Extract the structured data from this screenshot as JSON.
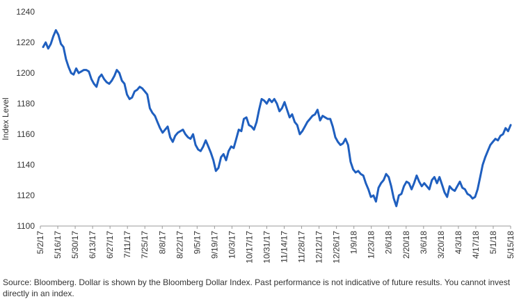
{
  "chart_data": {
    "type": "line",
    "ylabel": "Index Level",
    "ylim": [
      1100,
      1240
    ],
    "yticks": [
      1100,
      1120,
      1140,
      1160,
      1180,
      1200,
      1220,
      1240
    ],
    "x_tick_labels": [
      "5/2/17",
      "5/16/17",
      "5/30/17",
      "6/13/17",
      "6/27/17",
      "7/11/17",
      "7/25/17",
      "8/8/17",
      "8/22/17",
      "9/5/17",
      "9/19/17",
      "10/3/17",
      "10/17/17",
      "10/31/17",
      "11/14/17",
      "11/28/17",
      "12/12/17",
      "12/26/17",
      "1/9/18",
      "1/23/18",
      "2/6/18",
      "2/20/18",
      "3/6/18",
      "3/20/18",
      "4/3/18",
      "4/17/18",
      "5/1/18",
      "5/15/18"
    ],
    "grid": false,
    "line_color": "#1f5fbf",
    "series": [
      {
        "values": [
          1217,
          1220,
          1216,
          1219,
          1224,
          1228,
          1225,
          1219,
          1217,
          1209,
          1204,
          1200,
          1199,
          1203,
          1200,
          1201,
          1202,
          1202,
          1201,
          1196,
          1193,
          1191,
          1197,
          1199,
          1196,
          1194,
          1193,
          1195,
          1198,
          1202,
          1200,
          1195,
          1193,
          1186,
          1183,
          1184,
          1188,
          1189,
          1191,
          1190,
          1188,
          1186,
          1177,
          1174,
          1172,
          1168,
          1164,
          1161,
          1163,
          1165,
          1158,
          1155,
          1159,
          1161,
          1162,
          1163,
          1160,
          1158,
          1157,
          1160,
          1153,
          1150,
          1149,
          1152,
          1156,
          1152,
          1148,
          1143,
          1136,
          1138,
          1145,
          1147,
          1143,
          1149,
          1152,
          1151,
          1157,
          1163,
          1162,
          1170,
          1171,
          1166,
          1165,
          1163,
          1168,
          1176,
          1183,
          1182,
          1180,
          1183,
          1181,
          1183,
          1180,
          1175,
          1177,
          1181,
          1176,
          1171,
          1173,
          1168,
          1166,
          1160,
          1162,
          1165,
          1168,
          1170,
          1172,
          1173,
          1176,
          1169,
          1172,
          1171,
          1170,
          1170,
          1165,
          1158,
          1155,
          1153,
          1154,
          1157,
          1153,
          1142,
          1137,
          1135,
          1136,
          1134,
          1133,
          1128,
          1124,
          1119,
          1120,
          1116,
          1125,
          1128,
          1130,
          1134,
          1132,
          1126,
          1118,
          1113,
          1120,
          1121,
          1126,
          1129,
          1128,
          1124,
          1128,
          1133,
          1129,
          1126,
          1128,
          1126,
          1124,
          1130,
          1132,
          1128,
          1132,
          1127,
          1122,
          1119,
          1126,
          1124,
          1123,
          1126,
          1129,
          1125,
          1124,
          1121,
          1120,
          1118,
          1119,
          1124,
          1132,
          1140,
          1145,
          1149,
          1153,
          1155,
          1157,
          1156,
          1159,
          1160,
          1164,
          1162,
          1166
        ],
        "x_start": "5/2/17",
        "x_end": "5/15/18"
      }
    ]
  },
  "footnote": "Source: Bloomberg. Dollar is shown by the Bloomberg Dollar Index. Past performance is not indicative of future results. You cannot invest directly in an index."
}
